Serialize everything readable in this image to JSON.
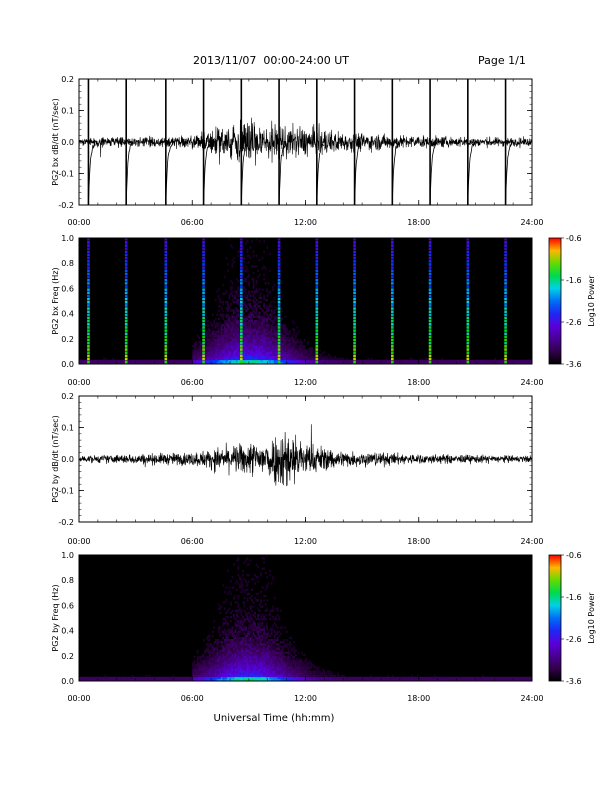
{
  "header": {
    "title": "2013/11/07  00:00-24:00 UT",
    "page": "Page 1/1"
  },
  "xaxis": {
    "label": "Universal Time (hh:mm)",
    "ticks": [
      "00:00",
      "06:00",
      "12:00",
      "18:00",
      "24:00"
    ],
    "range_hours": [
      0,
      24
    ]
  },
  "colorbar": {
    "title": "Log10 Power",
    "ticks": [
      "-0.6",
      "-1.6",
      "-2.6",
      "-3.6"
    ],
    "range": [
      -3.6,
      -0.6
    ]
  },
  "chart_data": [
    {
      "type": "line",
      "id": "bx_dbdt",
      "ylabel": "PG2 bx dB/dt (nT/sec)",
      "ylim": [
        -0.2,
        0.2
      ],
      "yticks": [
        "0.2",
        "0.1",
        "0.0",
        "-0.1",
        "-0.2"
      ],
      "x_unit": "hours UT",
      "pulse_times_hours": [
        0.5,
        2.5,
        4.6,
        6.6,
        8.6,
        10.6,
        12.6,
        14.6,
        16.6,
        18.6,
        20.6,
        22.6
      ],
      "noise_envelope": {
        "x": [
          0,
          6,
          8,
          9,
          10,
          12,
          14,
          18,
          24
        ],
        "amplitude": [
          0.012,
          0.02,
          0.05,
          0.07,
          0.055,
          0.045,
          0.03,
          0.018,
          0.012
        ]
      }
    },
    {
      "type": "heatmap",
      "id": "bx_freq",
      "ylabel": "PG2 bx Freq (Hz)",
      "ylim": [
        0.0,
        1.0
      ],
      "yticks": [
        "1.0",
        "0.8",
        "0.6",
        "0.4",
        "0.2",
        "0.0"
      ],
      "z_unit": "log10 power",
      "z_range": [
        -3.6,
        -0.6
      ],
      "pulse_times_hours": [
        0.5,
        2.5,
        4.6,
        6.6,
        8.6,
        10.6,
        12.6,
        14.6,
        16.6,
        18.6,
        20.6,
        22.6
      ],
      "activity_window_hours": [
        6,
        14
      ]
    },
    {
      "type": "line",
      "id": "by_dbdt",
      "ylabel": "PG2 by dB/dt (nT/sec)",
      "ylim": [
        -0.2,
        0.2
      ],
      "yticks": [
        "0.2",
        "0.1",
        "0.0",
        "-0.1",
        "-0.2"
      ],
      "x_unit": "hours UT",
      "noise_envelope": {
        "x": [
          0,
          6,
          8,
          9,
          10,
          11,
          12,
          14,
          18,
          24
        ],
        "amplitude": [
          0.01,
          0.02,
          0.04,
          0.05,
          0.06,
          0.1,
          0.05,
          0.025,
          0.015,
          0.01
        ]
      }
    },
    {
      "type": "heatmap",
      "id": "by_freq",
      "ylabel": "PG2 by Freq (Hz)",
      "ylim": [
        0.0,
        1.0
      ],
      "yticks": [
        "1.0",
        "0.8",
        "0.6",
        "0.4",
        "0.2",
        "0.0"
      ],
      "z_unit": "log10 power",
      "z_range": [
        -3.6,
        -0.6
      ],
      "activity_window_hours": [
        6,
        14
      ]
    }
  ]
}
